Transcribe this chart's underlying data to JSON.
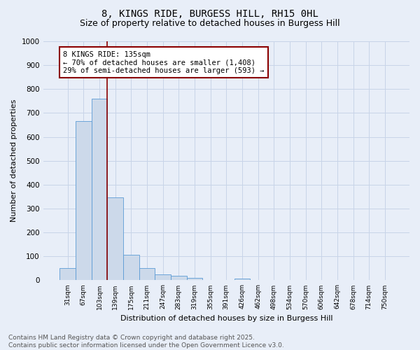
{
  "title": "8, KINGS RIDE, BURGESS HILL, RH15 0HL",
  "subtitle": "Size of property relative to detached houses in Burgess Hill",
  "xlabel": "Distribution of detached houses by size in Burgess Hill",
  "ylabel": "Number of detached properties",
  "bin_labels": [
    "31sqm",
    "67sqm",
    "103sqm",
    "139sqm",
    "175sqm",
    "211sqm",
    "247sqm",
    "283sqm",
    "319sqm",
    "355sqm",
    "391sqm",
    "426sqm",
    "462sqm",
    "498sqm",
    "534sqm",
    "570sqm",
    "606sqm",
    "642sqm",
    "678sqm",
    "714sqm",
    "750sqm"
  ],
  "bar_values": [
    52,
    665,
    760,
    347,
    107,
    50,
    26,
    18,
    10,
    0,
    0,
    7,
    0,
    0,
    0,
    0,
    0,
    0,
    0,
    0,
    0
  ],
  "bar_color": "#ccd9ea",
  "bar_edge_color": "#5b9bd5",
  "vline_color": "#8b0000",
  "annotation_box_text": "8 KINGS RIDE: 135sqm\n← 70% of detached houses are smaller (1,408)\n29% of semi-detached houses are larger (593) →",
  "annotation_box_color": "#8b0000",
  "annotation_box_bg": "#ffffff",
  "ylim": [
    0,
    1000
  ],
  "yticks": [
    0,
    100,
    200,
    300,
    400,
    500,
    600,
    700,
    800,
    900,
    1000
  ],
  "grid_color": "#c8d4e8",
  "bg_color": "#e8eef8",
  "footer_text": "Contains HM Land Registry data © Crown copyright and database right 2025.\nContains public sector information licensed under the Open Government Licence v3.0.",
  "title_fontsize": 10,
  "subtitle_fontsize": 9,
  "annotation_fontsize": 7.5,
  "footer_fontsize": 6.5,
  "ylabel_fontsize": 8,
  "xlabel_fontsize": 8
}
